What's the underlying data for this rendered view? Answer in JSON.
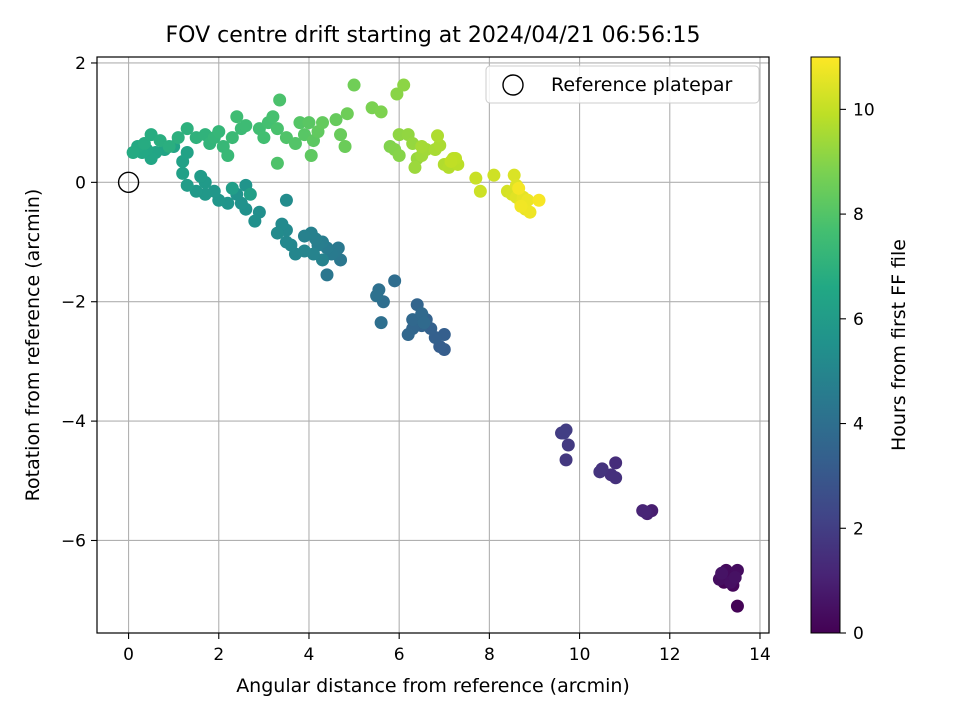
{
  "chart_data": {
    "type": "scatter",
    "title": "FOV centre drift starting at 2024/04/21 06:56:15",
    "xlabel": "Angular distance from reference (arcmin)",
    "ylabel": "Rotation from reference (arcmin)",
    "xlim": [
      -0.7,
      14.2
    ],
    "ylim": [
      -7.55,
      2.1
    ],
    "xticks": [
      0,
      2,
      4,
      6,
      8,
      10,
      12,
      14
    ],
    "yticks": [
      2,
      0,
      -2,
      -4,
      -6
    ],
    "xtick_labels": [
      "0",
      "2",
      "4",
      "6",
      "8",
      "10",
      "12",
      "14"
    ],
    "ytick_labels": [
      "2",
      "0",
      "−2",
      "−4",
      "−6"
    ],
    "grid": true,
    "legend": {
      "position": "top-right",
      "entries": [
        "Reference platepar"
      ]
    },
    "reference_point": {
      "x": 0,
      "y": 0
    },
    "colorbar": {
      "label": "Hours from first FF file",
      "range": [
        0,
        11
      ],
      "ticks": [
        0,
        2,
        4,
        6,
        8,
        10
      ],
      "tick_labels": [
        "0",
        "2",
        "4",
        "6",
        "8",
        "10"
      ],
      "colormap": "viridis"
    },
    "points": [
      [
        13.5,
        -7.1,
        0.05
      ],
      [
        13.2,
        -6.7,
        0.1
      ],
      [
        13.3,
        -6.6,
        0.15
      ],
      [
        13.4,
        -6.75,
        0.2
      ],
      [
        13.25,
        -6.5,
        0.3
      ],
      [
        13.5,
        -6.5,
        0.35
      ],
      [
        13.1,
        -6.65,
        0.4
      ],
      [
        13.35,
        -6.7,
        0.45
      ],
      [
        13.45,
        -6.62,
        0.5
      ],
      [
        13.15,
        -6.55,
        0.55
      ],
      [
        11.6,
        -5.5,
        0.9
      ],
      [
        11.5,
        -5.55,
        1.0
      ],
      [
        11.4,
        -5.5,
        1.1
      ],
      [
        11.45,
        -5.52,
        1.15
      ],
      [
        10.8,
        -4.7,
        1.4
      ],
      [
        10.7,
        -4.9,
        1.5
      ],
      [
        10.8,
        -4.95,
        1.55
      ],
      [
        10.5,
        -4.8,
        1.6
      ],
      [
        10.45,
        -4.85,
        1.65
      ],
      [
        9.7,
        -4.65,
        1.8
      ],
      [
        9.75,
        -4.4,
        1.85
      ],
      [
        9.6,
        -4.2,
        1.9
      ],
      [
        9.7,
        -4.15,
        1.95
      ],
      [
        9.65,
        -4.2,
        2.0
      ],
      [
        7.0,
        -2.8,
        3.2
      ],
      [
        6.9,
        -2.75,
        3.25
      ],
      [
        7.0,
        -2.55,
        3.3
      ],
      [
        6.8,
        -2.6,
        3.35
      ],
      [
        6.7,
        -2.45,
        3.4
      ],
      [
        6.6,
        -2.3,
        3.45
      ],
      [
        6.5,
        -2.4,
        3.5
      ],
      [
        6.4,
        -2.05,
        3.55
      ],
      [
        6.3,
        -2.45,
        3.6
      ],
      [
        6.2,
        -2.55,
        3.65
      ],
      [
        6.3,
        -2.3,
        3.7
      ],
      [
        6.5,
        -2.2,
        3.75
      ],
      [
        6.55,
        -2.35,
        3.8
      ],
      [
        5.9,
        -1.65,
        3.9
      ],
      [
        5.65,
        -2.0,
        3.95
      ],
      [
        5.6,
        -2.35,
        4.0
      ],
      [
        5.55,
        -1.8,
        4.05
      ],
      [
        5.5,
        -1.9,
        4.1
      ],
      [
        4.4,
        -1.55,
        4.3
      ],
      [
        4.7,
        -1.3,
        4.35
      ],
      [
        4.65,
        -1.1,
        4.4
      ],
      [
        4.6,
        -1.15,
        4.45
      ],
      [
        4.5,
        -1.2,
        4.5
      ],
      [
        4.4,
        -1.1,
        4.55
      ],
      [
        4.3,
        -1.0,
        4.6
      ],
      [
        4.2,
        -1.05,
        4.65
      ],
      [
        4.15,
        -0.95,
        4.7
      ],
      [
        4.05,
        -0.85,
        4.75
      ],
      [
        3.9,
        -0.9,
        4.8
      ],
      [
        4.3,
        -1.3,
        4.85
      ],
      [
        4.1,
        -1.2,
        4.9
      ],
      [
        3.9,
        -1.15,
        4.95
      ],
      [
        3.7,
        -1.2,
        5.0
      ],
      [
        3.6,
        -1.05,
        5.05
      ],
      [
        3.5,
        -1.0,
        5.1
      ],
      [
        3.5,
        -0.8,
        5.15
      ],
      [
        3.4,
        -0.7,
        5.2
      ],
      [
        3.3,
        -0.85,
        5.25
      ],
      [
        3.5,
        -0.3,
        5.3
      ],
      [
        2.9,
        -0.5,
        5.4
      ],
      [
        2.8,
        -0.65,
        5.45
      ],
      [
        2.6,
        -0.45,
        5.5
      ],
      [
        2.5,
        -0.35,
        5.55
      ],
      [
        2.4,
        -0.2,
        5.6
      ],
      [
        2.6,
        -0.05,
        5.65
      ],
      [
        2.2,
        -0.35,
        5.7
      ],
      [
        2.0,
        -0.3,
        5.75
      ],
      [
        1.9,
        -0.15,
        5.8
      ],
      [
        1.7,
        -0.2,
        5.85
      ],
      [
        1.5,
        -0.15,
        5.9
      ],
      [
        1.7,
        0.0,
        5.95
      ],
      [
        1.6,
        0.1,
        6.0
      ],
      [
        1.3,
        -0.05,
        6.05
      ],
      [
        2.3,
        -0.1,
        6.1
      ],
      [
        2.7,
        -0.2,
        6.15
      ],
      [
        1.2,
        0.15,
        6.2
      ],
      [
        1.2,
        0.35,
        6.25
      ],
      [
        1.3,
        0.5,
        6.3
      ],
      [
        1.0,
        0.6,
        6.35
      ],
      [
        0.8,
        0.55,
        6.4
      ],
      [
        0.6,
        0.5,
        6.45
      ],
      [
        0.5,
        0.4,
        6.5
      ],
      [
        0.4,
        0.55,
        6.55
      ],
      [
        0.3,
        0.5,
        6.6
      ],
      [
        0.2,
        0.6,
        6.65
      ],
      [
        0.1,
        0.5,
        6.7
      ],
      [
        0.35,
        0.65,
        6.75
      ],
      [
        0.5,
        0.8,
        6.8
      ],
      [
        0.7,
        0.7,
        6.85
      ],
      [
        0.9,
        0.6,
        6.9
      ],
      [
        1.1,
        0.75,
        6.95
      ],
      [
        1.3,
        0.9,
        7.0
      ],
      [
        1.5,
        0.75,
        7.05
      ],
      [
        1.7,
        0.8,
        7.1
      ],
      [
        1.8,
        0.65,
        7.15
      ],
      [
        1.9,
        0.75,
        7.2
      ],
      [
        2.0,
        0.85,
        7.25
      ],
      [
        2.1,
        0.6,
        7.3
      ],
      [
        2.2,
        0.45,
        7.35
      ],
      [
        2.3,
        0.75,
        7.4
      ],
      [
        2.5,
        0.9,
        7.45
      ],
      [
        2.6,
        0.95,
        7.5
      ],
      [
        2.4,
        1.1,
        7.55
      ],
      [
        2.9,
        0.9,
        7.6
      ],
      [
        3.0,
        0.75,
        7.65
      ],
      [
        3.1,
        1.0,
        7.7
      ],
      [
        3.2,
        1.1,
        7.75
      ],
      [
        3.3,
        0.9,
        7.8
      ],
      [
        3.35,
        1.38,
        7.85
      ],
      [
        3.3,
        0.32,
        7.9
      ],
      [
        3.5,
        0.75,
        7.95
      ],
      [
        3.7,
        0.65,
        8.0
      ],
      [
        3.8,
        1.0,
        8.05
      ],
      [
        3.9,
        0.8,
        8.1
      ],
      [
        4.0,
        1.0,
        8.15
      ],
      [
        4.1,
        0.7,
        8.2
      ],
      [
        4.05,
        0.45,
        8.25
      ],
      [
        4.2,
        0.85,
        8.3
      ],
      [
        4.3,
        1.0,
        8.35
      ],
      [
        4.6,
        1.05,
        8.4
      ],
      [
        4.7,
        0.8,
        8.45
      ],
      [
        4.8,
        0.6,
        8.5
      ],
      [
        4.85,
        1.15,
        8.55
      ],
      [
        5.0,
        1.63,
        8.6
      ],
      [
        5.4,
        1.25,
        8.8
      ],
      [
        5.6,
        1.18,
        8.85
      ],
      [
        5.8,
        0.6,
        8.9
      ],
      [
        5.9,
        0.55,
        8.95
      ],
      [
        6.0,
        0.45,
        9.0
      ],
      [
        5.95,
        1.48,
        9.05
      ],
      [
        6.1,
        1.63,
        9.1
      ],
      [
        6.0,
        0.8,
        9.15
      ],
      [
        6.2,
        0.8,
        9.2
      ],
      [
        6.3,
        0.65,
        9.25
      ],
      [
        6.4,
        0.4,
        9.3
      ],
      [
        6.35,
        0.25,
        9.35
      ],
      [
        6.5,
        0.45,
        9.4
      ],
      [
        6.6,
        0.55,
        9.45
      ],
      [
        6.5,
        0.6,
        9.5
      ],
      [
        6.8,
        0.55,
        9.55
      ],
      [
        6.9,
        0.62,
        9.6
      ],
      [
        6.85,
        0.78,
        9.65
      ],
      [
        7.0,
        0.3,
        9.7
      ],
      [
        7.1,
        0.25,
        9.75
      ],
      [
        7.2,
        0.4,
        9.8
      ],
      [
        7.3,
        0.3,
        9.85
      ],
      [
        7.25,
        0.4,
        9.9
      ],
      [
        7.15,
        0.35,
        9.95
      ],
      [
        7.7,
        0.07,
        10.1
      ],
      [
        7.8,
        -0.15,
        10.15
      ],
      [
        8.1,
        0.12,
        10.2
      ],
      [
        8.4,
        -0.15,
        10.3
      ],
      [
        8.5,
        -0.2,
        10.35
      ],
      [
        8.55,
        0.12,
        10.4
      ],
      [
        8.6,
        -0.05,
        10.45
      ],
      [
        8.6,
        -0.25,
        10.5
      ],
      [
        8.7,
        -0.35,
        10.55
      ],
      [
        8.75,
        -0.25,
        10.6
      ],
      [
        8.8,
        -0.45,
        10.65
      ],
      [
        8.85,
        -0.3,
        10.7
      ],
      [
        8.9,
        -0.5,
        10.75
      ],
      [
        8.7,
        -0.4,
        10.8
      ],
      [
        8.65,
        -0.1,
        10.85
      ],
      [
        9.1,
        -0.3,
        10.9
      ]
    ]
  }
}
